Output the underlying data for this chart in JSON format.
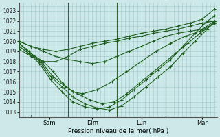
{
  "xlabel": "Pression niveau de la mer( hPa )",
  "ylim": [
    1013,
    1023.5
  ],
  "yticks": [
    1013,
    1014,
    1015,
    1016,
    1017,
    1018,
    1019,
    1020,
    1021,
    1022,
    1023
  ],
  "day_labels": [
    "Sam",
    "Dim",
    "Lun",
    "Mar"
  ],
  "day_positions": [
    0.25,
    1.0,
    2.0,
    3.0,
    4.0
  ],
  "bg_color": "#cde8e8",
  "grid_color": "#a0c8c8",
  "line_color": "#1a5c1a",
  "series": [
    {
      "x": [
        0.0,
        0.25,
        0.5,
        0.75,
        1.0,
        1.25,
        1.5,
        1.75,
        2.0,
        2.25,
        2.5,
        2.75,
        3.0,
        3.25,
        3.5,
        3.75,
        4.0
      ],
      "y": [
        1020.0,
        1019.5,
        1019.0,
        1018.5,
        1018.2,
        1018.0,
        1017.8,
        1018.0,
        1018.5,
        1019.0,
        1019.5,
        1020.0,
        1020.5,
        1020.8,
        1021.0,
        1021.2,
        1022.0
      ]
    },
    {
      "x": [
        0.0,
        0.15,
        0.3,
        0.5,
        0.7,
        0.9,
        1.1,
        1.3,
        1.6,
        1.9,
        2.2,
        2.5,
        2.8,
        3.1,
        3.4,
        3.7,
        4.0
      ],
      "y": [
        1019.8,
        1019.2,
        1018.6,
        1018.0,
        1017.0,
        1015.8,
        1015.0,
        1014.8,
        1015.2,
        1016.0,
        1017.0,
        1018.0,
        1019.0,
        1019.8,
        1020.5,
        1021.0,
        1021.8
      ]
    },
    {
      "x": [
        0.0,
        0.2,
        0.45,
        0.7,
        0.95,
        1.2,
        1.45,
        1.7,
        1.95,
        2.2,
        2.45,
        2.7,
        2.95,
        3.2,
        3.45,
        3.7,
        4.0
      ],
      "y": [
        1019.5,
        1018.8,
        1018.0,
        1016.5,
        1015.5,
        1014.8,
        1014.2,
        1013.8,
        1014.0,
        1014.8,
        1015.8,
        1016.8,
        1017.8,
        1018.8,
        1019.8,
        1020.8,
        1021.8
      ]
    },
    {
      "x": [
        0.0,
        0.2,
        0.42,
        0.65,
        0.88,
        1.1,
        1.35,
        1.6,
        1.85,
        2.1,
        2.35,
        2.6,
        2.85,
        3.1,
        3.35,
        3.6,
        3.85,
        4.0
      ],
      "y": [
        1019.8,
        1019.0,
        1018.0,
        1016.5,
        1015.5,
        1014.5,
        1013.8,
        1013.4,
        1013.2,
        1013.6,
        1014.5,
        1015.5,
        1016.5,
        1017.5,
        1018.8,
        1020.0,
        1021.2,
        1022.0
      ]
    },
    {
      "x": [
        0.0,
        0.2,
        0.42,
        0.65,
        0.88,
        1.1,
        1.35,
        1.6,
        1.85,
        2.1,
        2.35,
        2.6,
        2.85,
        3.1,
        3.35,
        3.6,
        3.85,
        4.0
      ],
      "y": [
        1019.5,
        1018.8,
        1017.8,
        1016.2,
        1015.0,
        1014.0,
        1013.5,
        1013.3,
        1013.5,
        1014.2,
        1015.2,
        1016.2,
        1017.2,
        1018.2,
        1019.5,
        1020.8,
        1022.0,
        1022.5
      ]
    },
    {
      "x": [
        0.0,
        0.25,
        0.5,
        0.75,
        1.0,
        1.25,
        1.5,
        1.75,
        2.0,
        2.25,
        2.5,
        2.75,
        3.0,
        3.25,
        3.5,
        3.75,
        4.0
      ],
      "y": [
        1019.2,
        1018.5,
        1018.0,
        1018.0,
        1018.5,
        1019.2,
        1019.5,
        1019.8,
        1020.0,
        1020.3,
        1020.5,
        1020.8,
        1021.0,
        1021.2,
        1021.5,
        1021.8,
        1022.0
      ]
    },
    {
      "x": [
        0.0,
        0.25,
        0.5,
        0.75,
        1.0,
        1.25,
        1.5,
        1.75,
        2.0,
        2.25,
        2.5,
        2.75,
        3.0,
        3.25,
        3.5,
        3.75,
        4.0
      ],
      "y": [
        1020.0,
        1019.5,
        1019.2,
        1019.0,
        1019.2,
        1019.5,
        1019.8,
        1020.0,
        1020.2,
        1020.5,
        1020.8,
        1021.0,
        1021.2,
        1021.5,
        1021.8,
        1022.2,
        1023.2
      ]
    }
  ]
}
